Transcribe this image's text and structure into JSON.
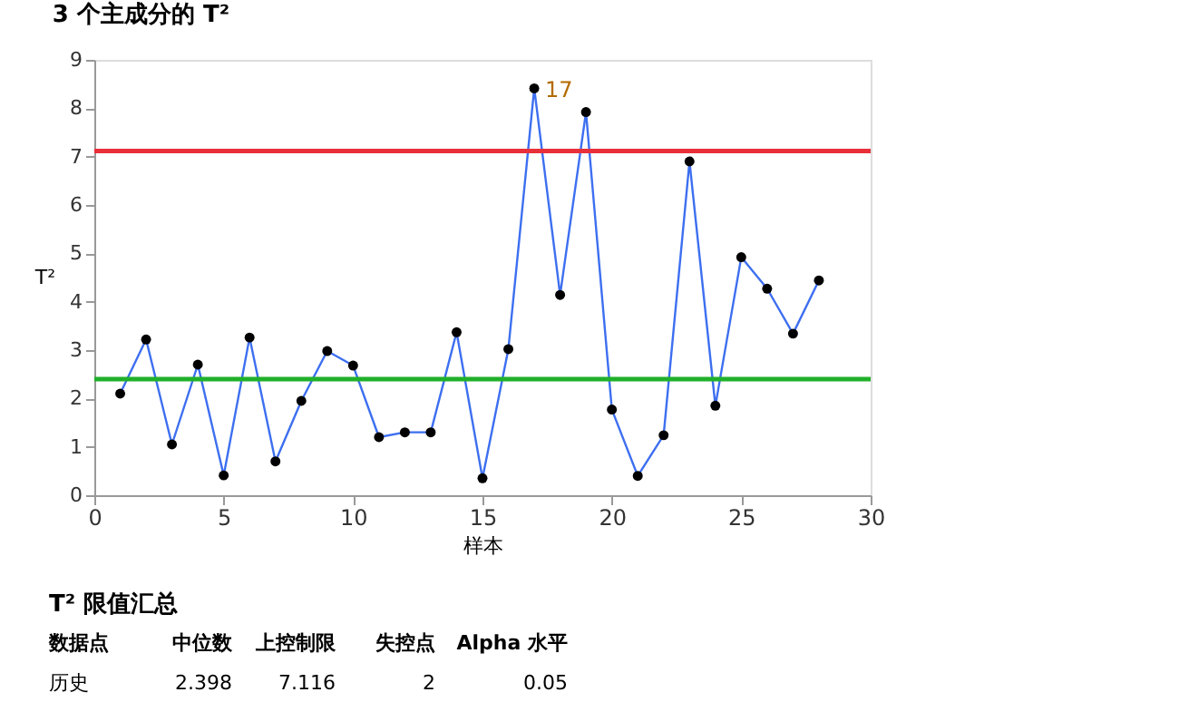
{
  "chart_data": {
    "type": "line",
    "title": "3 个主成分的 T²",
    "xlabel": "样本",
    "ylabel": "T²",
    "x": [
      1,
      2,
      3,
      4,
      5,
      6,
      7,
      8,
      9,
      10,
      11,
      12,
      13,
      14,
      15,
      16,
      17,
      18,
      19,
      20,
      21,
      22,
      23,
      24,
      25,
      26,
      27,
      28
    ],
    "series": [
      {
        "color": "#3d6ff0",
        "values": [
          2.1,
          3.22,
          1.05,
          2.7,
          0.41,
          3.26,
          0.7,
          1.95,
          2.98,
          2.68,
          1.2,
          1.3,
          1.3,
          3.37,
          0.35,
          3.02,
          8.41,
          4.14,
          7.92,
          1.77,
          0.4,
          1.24,
          6.9,
          1.85,
          4.92,
          4.27,
          3.34,
          4.44
        ]
      }
    ],
    "xlim": [
      0,
      30
    ],
    "xticks": [
      0,
      5,
      10,
      15,
      20,
      25,
      30
    ],
    "ylim": [
      0,
      9
    ],
    "yticks": [
      0,
      1,
      2,
      3,
      4,
      5,
      6,
      7,
      8,
      9
    ],
    "grid": false,
    "marker": "circle",
    "line_style": "solid",
    "ref_lines": [
      {
        "axis": "y",
        "value": 7.116,
        "color": "#e8303a"
      },
      {
        "axis": "y",
        "value": 2.398,
        "color": "#20b02a"
      }
    ],
    "annotations": [
      {
        "text": "17",
        "x": 17,
        "y": 8.41
      },
      "T² 限值汇总",
      "数据点",
      "中位数",
      "上控制限",
      "失控点",
      "Alpha 水平",
      "历史",
      "2.398",
      "7.116",
      "2",
      "0.05"
    ]
  }
}
